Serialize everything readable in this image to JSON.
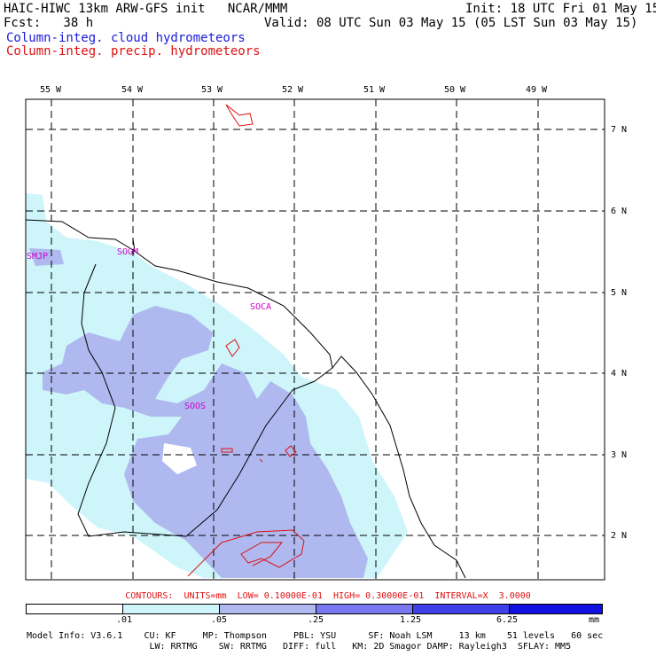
{
  "header": {
    "model_title": "HAIC-HIWC 13km ARW-GFS init   NCAR/MMM",
    "init": "Init: 18 UTC Fri 01 May 15",
    "fcst": "Fcst:   38 h",
    "valid": "Valid: 08 UTC Sun 03 May 15 (05 LST Sun 03 May 15)",
    "field_cloud": "Column-integ. cloud hydrometeors",
    "field_precip": "Column-integ. precip. hydrometeors"
  },
  "map": {
    "longitude_labels": [
      "55 W",
      "54 W",
      "53 W",
      "52 W",
      "51 W",
      "50 W",
      "49 W"
    ],
    "latitude_labels": [
      "7 N",
      "6 N",
      "5 N",
      "4 N",
      "3 N",
      "2 N"
    ],
    "stations": [
      "SMJP",
      "SOGM",
      "SOCA",
      "SOOS"
    ]
  },
  "contours_line": "CONTOURS:  UNITS=mm  LOW= 0.10000E-01  HIGH= 0.30000E-01  INTERVAL=X  3.0000",
  "colorbar": {
    "labels": [
      ".01",
      ".05",
      ".25",
      "1.25",
      "6.25"
    ],
    "units": "mm",
    "colors": [
      "#ffffff",
      "#cdf5fa",
      "#afb9f0",
      "#7878f0",
      "#4040e8",
      "#1010e0"
    ]
  },
  "model_info": {
    "line1": "Model Info: V3.6.1    CU: KF     MP: Thompson     PBL: YSU      SF: Noah LSM     13 km    51 levels   60 sec",
    "line2": "                       LW: RRTMG    SW: RRTMG   DIFF: full   KM: 2D Smagor DAMP: Rayleigh3  SFLAY: MM5"
  },
  "colors": {
    "cloud_light": "#cdf5fa",
    "cloud_mid": "#afb9f0",
    "precip_contour": "#dd1111",
    "stations": "#cc00cc",
    "cloud_label": "#1a1adc"
  }
}
